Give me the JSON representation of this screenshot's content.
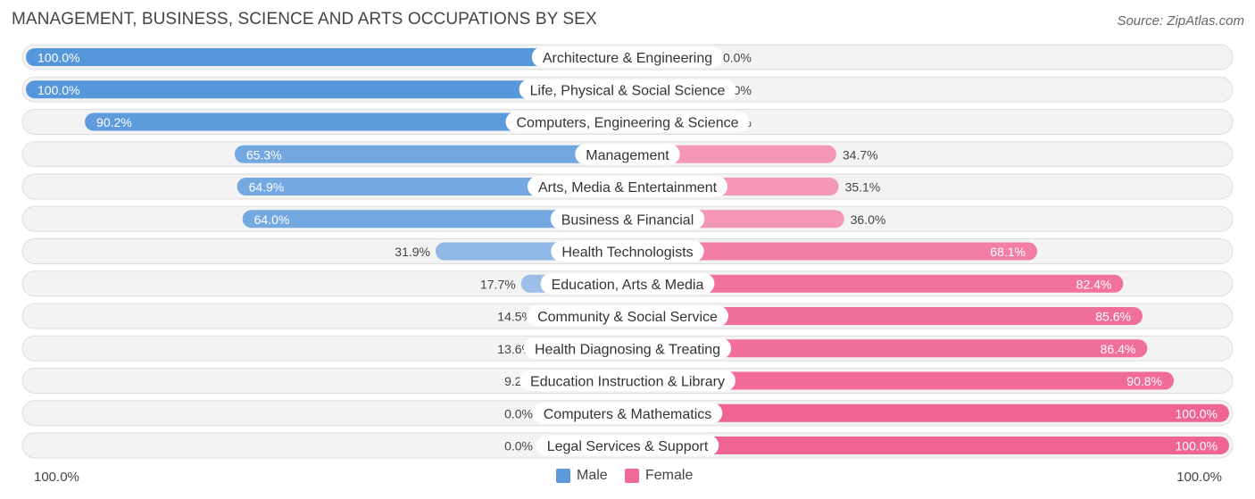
{
  "chart_data": {
    "type": "bar",
    "orientation": "horizontal-diverging",
    "title": "MANAGEMENT, BUSINESS, SCIENCE AND ARTS OCCUPATIONS BY SEX",
    "source": "Source: ZipAtlas.com",
    "categories": [
      "Architecture & Engineering",
      "Life, Physical & Social Science",
      "Computers, Engineering & Science",
      "Management",
      "Arts, Media & Entertainment",
      "Business & Financial",
      "Health Technologists",
      "Education, Arts & Media",
      "Community & Social Service",
      "Health Diagnosing & Treating",
      "Education Instruction & Library",
      "Computers & Mathematics",
      "Legal Services & Support"
    ],
    "series": [
      {
        "name": "Male",
        "color": "#5b9bdc",
        "values": [
          100.0,
          100.0,
          90.2,
          65.3,
          64.9,
          64.0,
          31.9,
          17.7,
          14.5,
          13.6,
          9.2,
          0.0,
          0.0
        ],
        "labels": [
          "100.0%",
          "100.0%",
          "90.2%",
          "65.3%",
          "64.9%",
          "64.0%",
          "31.9%",
          "17.7%",
          "14.5%",
          "13.6%",
          "9.2%",
          "0.0%",
          "0.0%"
        ]
      },
      {
        "name": "Female",
        "color": "#f06b98",
        "values": [
          0.0,
          0.0,
          9.8,
          34.7,
          35.1,
          36.0,
          68.1,
          82.4,
          85.6,
          86.4,
          90.8,
          100.0,
          100.0
        ],
        "labels": [
          "0.0%",
          "0.0%",
          "9.8%",
          "34.7%",
          "35.1%",
          "36.0%",
          "68.1%",
          "82.4%",
          "85.6%",
          "86.4%",
          "90.8%",
          "100.0%",
          "100.0%"
        ]
      }
    ],
    "axis_left_label": "100.0%",
    "axis_right_label": "100.0%",
    "xlim": [
      0,
      100
    ],
    "legend_position": "bottom-center"
  }
}
